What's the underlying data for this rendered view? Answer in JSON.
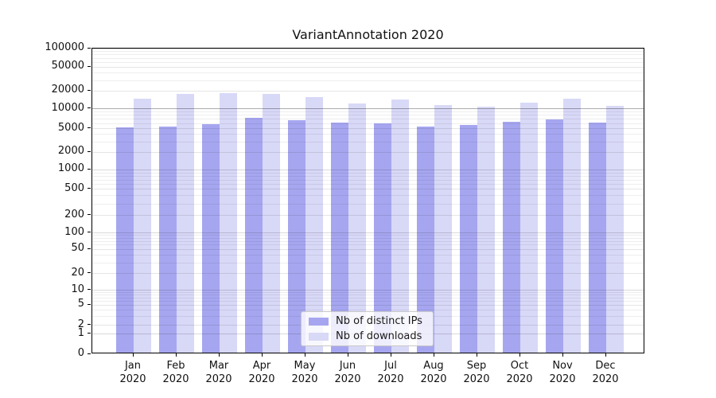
{
  "title": "VariantAnnotation 2020",
  "background_color": "#ffffff",
  "chart_data": {
    "type": "bar",
    "title": "VariantAnnotation 2020",
    "xlabel": "",
    "ylabel": "",
    "scale": "log-like (symlog with 0 baseline)",
    "grid": true,
    "legend_position": "lower center",
    "ylim": [
      0,
      100000
    ],
    "y_ticks": [
      0,
      1,
      2,
      5,
      10,
      20,
      50,
      100,
      200,
      500,
      1000,
      2000,
      5000,
      10000,
      20000,
      50000,
      100000
    ],
    "categories": [
      "Jan 2020",
      "Feb 2020",
      "Mar 2020",
      "Apr 2020",
      "May 2020",
      "Jun 2020",
      "Jul 2020",
      "Aug 2020",
      "Sep 2020",
      "Oct 2020",
      "Nov 2020",
      "Dec 2020"
    ],
    "series": [
      {
        "name": "Nb of distinct IPs",
        "color": "#a6a6f0",
        "values": [
          5000,
          5100,
          5600,
          7000,
          6300,
          5800,
          5700,
          5100,
          5400,
          6000,
          6600,
          5800
        ]
      },
      {
        "name": "Nb of downloads",
        "color": "#d8d8f7",
        "values": [
          13800,
          17000,
          17100,
          16900,
          15000,
          11600,
          13400,
          10900,
          10300,
          11900,
          14000,
          10500
        ]
      }
    ]
  }
}
